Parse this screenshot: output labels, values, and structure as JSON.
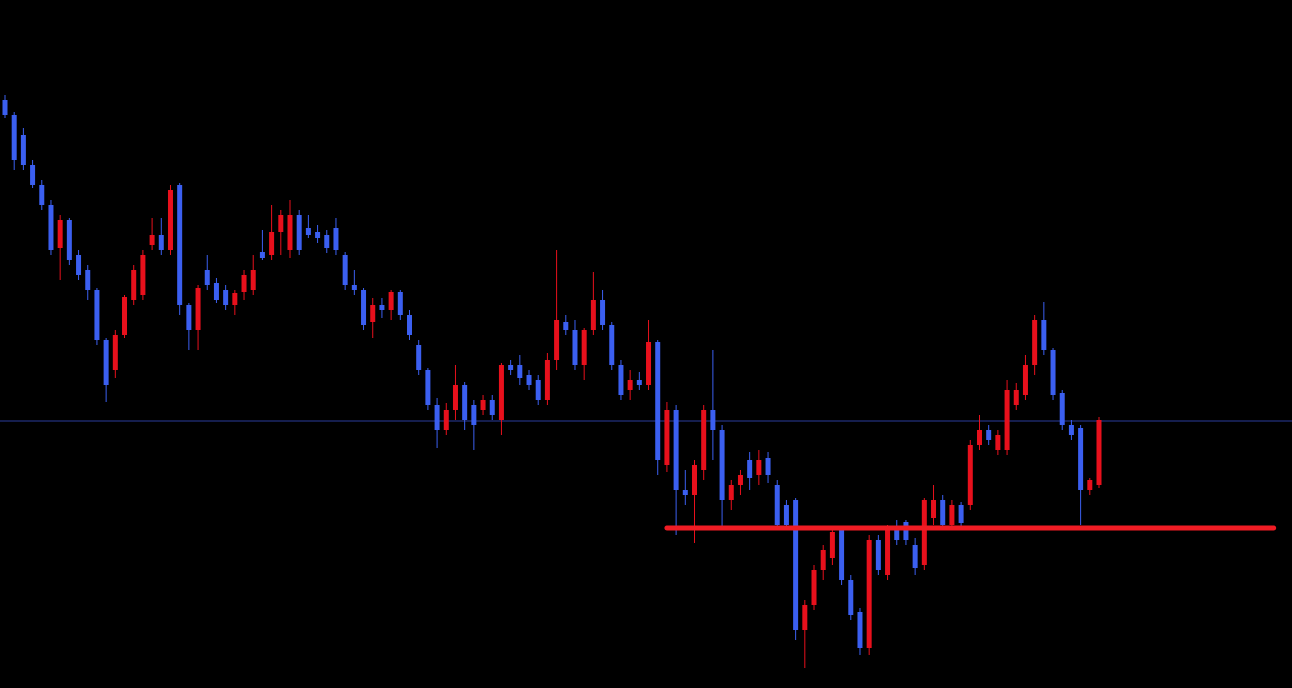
{
  "chart_data": {
    "type": "candlestick",
    "ylim": [
      0,
      688
    ],
    "up_color": "#e8101c",
    "down_color": "#3b5ff0",
    "background": "#000000",
    "ohlc": [
      [
        588,
        593,
        570,
        573
      ],
      [
        573,
        576,
        518,
        528
      ],
      [
        553,
        560,
        518,
        523
      ],
      [
        523,
        528,
        500,
        503
      ],
      [
        503,
        508,
        478,
        483
      ],
      [
        483,
        488,
        433,
        438
      ],
      [
        440,
        473,
        408,
        468
      ],
      [
        468,
        470,
        423,
        428
      ],
      [
        433,
        438,
        408,
        413
      ],
      [
        418,
        423,
        388,
        398
      ],
      [
        398,
        400,
        343,
        348
      ],
      [
        348,
        350,
        286,
        303
      ],
      [
        318,
        358,
        310,
        353
      ],
      [
        353,
        393,
        350,
        391
      ],
      [
        388,
        423,
        383,
        418
      ],
      [
        393,
        438,
        388,
        433
      ],
      [
        443,
        470,
        438,
        453
      ],
      [
        453,
        470,
        433,
        438
      ],
      [
        438,
        503,
        433,
        498
      ],
      [
        503,
        505,
        373,
        383
      ],
      [
        383,
        385,
        338,
        358
      ],
      [
        358,
        403,
        338,
        400
      ],
      [
        418,
        433,
        398,
        403
      ],
      [
        405,
        410,
        385,
        388
      ],
      [
        398,
        403,
        378,
        383
      ],
      [
        383,
        398,
        373,
        395
      ],
      [
        396,
        418,
        388,
        413
      ],
      [
        398,
        433,
        393,
        418
      ],
      [
        436,
        458,
        428,
        430
      ],
      [
        433,
        483,
        428,
        456
      ],
      [
        456,
        478,
        433,
        473
      ],
      [
        438,
        488,
        430,
        473
      ],
      [
        473,
        478,
        433,
        438
      ],
      [
        460,
        473,
        450,
        453
      ],
      [
        456,
        463,
        445,
        450
      ],
      [
        453,
        458,
        435,
        440
      ],
      [
        460,
        470,
        433,
        438
      ],
      [
        433,
        436,
        398,
        403
      ],
      [
        403,
        418,
        393,
        398
      ],
      [
        398,
        400,
        358,
        363
      ],
      [
        366,
        390,
        350,
        383
      ],
      [
        383,
        390,
        370,
        378
      ],
      [
        378,
        398,
        368,
        396
      ],
      [
        396,
        398,
        368,
        373
      ],
      [
        373,
        378,
        348,
        353
      ],
      [
        343,
        348,
        313,
        318
      ],
      [
        318,
        320,
        278,
        283
      ],
      [
        283,
        290,
        240,
        258
      ],
      [
        258,
        285,
        253,
        278
      ],
      [
        278,
        323,
        268,
        303
      ],
      [
        303,
        306,
        258,
        268
      ],
      [
        283,
        288,
        238,
        263
      ],
      [
        278,
        293,
        273,
        288
      ],
      [
        288,
        293,
        268,
        273
      ],
      [
        268,
        325,
        253,
        323
      ],
      [
        323,
        328,
        313,
        318
      ],
      [
        323,
        333,
        303,
        310
      ],
      [
        313,
        318,
        298,
        303
      ],
      [
        308,
        313,
        283,
        288
      ],
      [
        288,
        335,
        283,
        328
      ],
      [
        328,
        438,
        318,
        368
      ],
      [
        366,
        373,
        353,
        358
      ],
      [
        358,
        368,
        318,
        323
      ],
      [
        323,
        360,
        308,
        358
      ],
      [
        358,
        416,
        353,
        388
      ],
      [
        388,
        398,
        358,
        363
      ],
      [
        363,
        366,
        318,
        323
      ],
      [
        323,
        328,
        288,
        293
      ],
      [
        298,
        318,
        288,
        308
      ],
      [
        308,
        316,
        298,
        303
      ],
      [
        303,
        368,
        298,
        346
      ],
      [
        346,
        348,
        213,
        228
      ],
      [
        223,
        286,
        216,
        278
      ],
      [
        278,
        283,
        153,
        198
      ],
      [
        198,
        218,
        183,
        193
      ],
      [
        193,
        228,
        145,
        223
      ],
      [
        218,
        283,
        208,
        278
      ],
      [
        278,
        338,
        228,
        258
      ],
      [
        258,
        263,
        158,
        188
      ],
      [
        188,
        208,
        178,
        203
      ],
      [
        203,
        218,
        193,
        213
      ],
      [
        228,
        236,
        198,
        210
      ],
      [
        213,
        238,
        203,
        228
      ],
      [
        230,
        236,
        205,
        213
      ],
      [
        203,
        208,
        158,
        163
      ],
      [
        183,
        188,
        158,
        163
      ],
      [
        188,
        190,
        48,
        58
      ],
      [
        58,
        88,
        20,
        83
      ],
      [
        83,
        123,
        78,
        118
      ],
      [
        118,
        143,
        108,
        138
      ],
      [
        130,
        158,
        123,
        156
      ],
      [
        158,
        160,
        103,
        108
      ],
      [
        108,
        113,
        68,
        73
      ],
      [
        76,
        80,
        33,
        40
      ],
      [
        40,
        153,
        33,
        148
      ],
      [
        148,
        153,
        113,
        118
      ],
      [
        113,
        163,
        108,
        158
      ],
      [
        158,
        168,
        143,
        148
      ],
      [
        166,
        168,
        143,
        148
      ],
      [
        143,
        150,
        113,
        120
      ],
      [
        123,
        190,
        118,
        188
      ],
      [
        170,
        203,
        163,
        188
      ],
      [
        188,
        193,
        160,
        163
      ],
      [
        163,
        188,
        158,
        183
      ],
      [
        183,
        186,
        158,
        165
      ],
      [
        183,
        248,
        178,
        243
      ],
      [
        243,
        273,
        238,
        258
      ],
      [
        258,
        263,
        243,
        248
      ],
      [
        238,
        258,
        233,
        253
      ],
      [
        238,
        308,
        233,
        298
      ],
      [
        283,
        305,
        278,
        298
      ],
      [
        293,
        333,
        288,
        323
      ],
      [
        323,
        373,
        313,
        368
      ],
      [
        368,
        386,
        333,
        338
      ],
      [
        338,
        340,
        288,
        293
      ],
      [
        295,
        298,
        258,
        263
      ],
      [
        263,
        268,
        248,
        253
      ],
      [
        260,
        263,
        163,
        198
      ],
      [
        198,
        210,
        193,
        208
      ],
      [
        203,
        271,
        200,
        268
      ]
    ],
    "levels": [
      {
        "value": 267,
        "color": "#2a3c9c",
        "width": 1
      },
      {
        "value": 160,
        "color": "#f01c24",
        "width": 5,
        "range": [
          72,
          138
        ]
      }
    ]
  }
}
